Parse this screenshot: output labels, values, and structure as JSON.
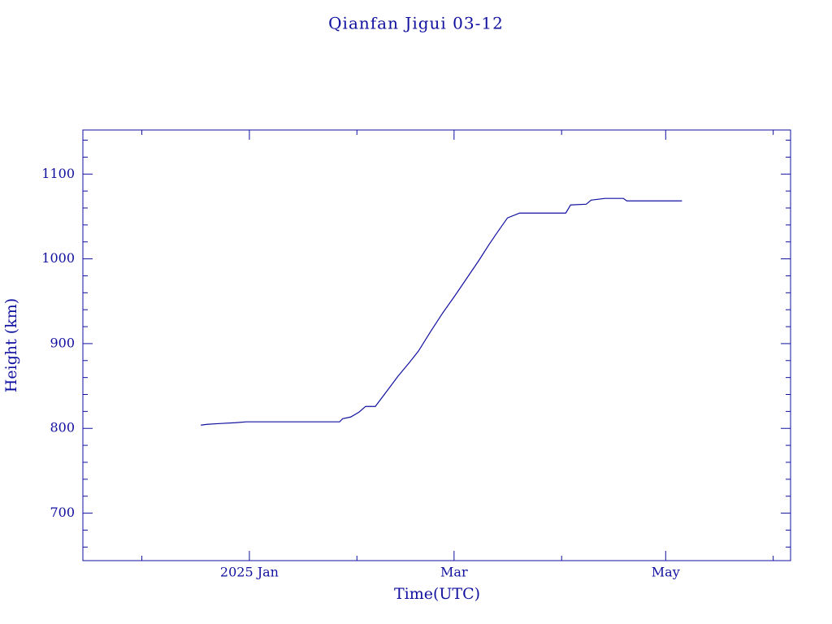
{
  "chart_data": {
    "type": "line",
    "title": "Qianfan Jigui 03-12",
    "x_label": "Time(UTC)",
    "y_label": "Height (km)",
    "color": "#1010a0",
    "xlim": [
      -48,
      156
    ],
    "ylim": [
      644,
      1152
    ],
    "xticks": [
      {
        "value": 0,
        "label": "2025 Jan"
      },
      {
        "value": 59,
        "label": "Mar"
      },
      {
        "value": 120,
        "label": "May"
      }
    ],
    "xticks_minor": [
      -31,
      31,
      90,
      151
    ],
    "yticks": [
      700,
      800,
      900,
      1000,
      1100
    ],
    "yticks_minor": [
      660,
      680,
      720,
      740,
      760,
      780,
      820,
      840,
      860,
      880,
      920,
      940,
      960,
      980,
      1020,
      1040,
      1060,
      1080,
      1120,
      1140
    ],
    "series": [
      {
        "name": "Qianfan Jigui 03-12",
        "x": [
          -14,
          -12.2,
          -8.7,
          -4,
          -0.9,
          26,
          26.9,
          29.2,
          31.6,
          33.5,
          36.3,
          39.3,
          42.8,
          46.3,
          48.7,
          52.2,
          55.7,
          59.2,
          62.7,
          66.2,
          69.2,
          71.6,
          74.4,
          77.9,
          91.2,
          92.6,
          97.1,
          98.5,
          102.5,
          107.8,
          108.8,
          124.7
        ],
        "values": [
          803.8,
          804.8,
          805.7,
          806.7,
          807.7,
          807.7,
          811.5,
          813.4,
          819.2,
          825.9,
          825.9,
          842.2,
          861.3,
          878.6,
          891,
          914,
          936,
          956.2,
          977.3,
          998.4,
          1017.6,
          1032,
          1048.3,
          1054,
          1054,
          1063.6,
          1064.5,
          1069.3,
          1071.3,
          1071.3,
          1068.4,
          1068.4
        ]
      }
    ]
  }
}
